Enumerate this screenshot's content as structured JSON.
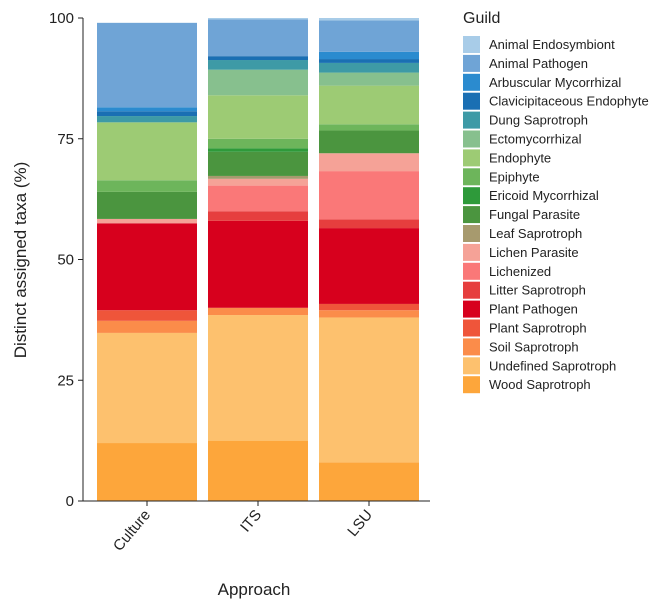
{
  "chart_data": {
    "type": "bar",
    "stacked": true,
    "title": "",
    "xlabel": "Approach",
    "ylabel": "Distinct assigned taxa (%)",
    "ylim": [
      0,
      100
    ],
    "yticks": [
      0,
      25,
      50,
      75,
      100
    ],
    "categories": [
      "Culture",
      "ITS",
      "LSU"
    ],
    "legend": {
      "title": "Guild",
      "position": "right"
    },
    "series": [
      {
        "name": "Wood Saprotroph",
        "color": "#FDA63B",
        "values": [
          12,
          12.5,
          8
        ]
      },
      {
        "name": "Undefined Saprotroph",
        "color": "#FDC16E",
        "values": [
          22.8,
          26,
          30
        ]
      },
      {
        "name": "Soil Saprotroph",
        "color": "#FB8C4A",
        "values": [
          2.5,
          1.5,
          1.5
        ]
      },
      {
        "name": "Plant Saprotroph",
        "color": "#EF553A",
        "values": [
          2.2,
          0,
          1.3
        ]
      },
      {
        "name": "Plant Pathogen",
        "color": "#D7001D",
        "values": [
          18,
          18,
          15.7
        ]
      },
      {
        "name": "Litter Saprotroph",
        "color": "#E63E3E",
        "values": [
          0,
          2,
          1.8
        ]
      },
      {
        "name": "Lichenized",
        "color": "#FA7878",
        "values": [
          0,
          5.3,
          10
        ]
      },
      {
        "name": "Lichen Parasite",
        "color": "#F5A297",
        "values": [
          0.9,
          1.4,
          3.7
        ]
      },
      {
        "name": "Leaf Saprotroph",
        "color": "#A79A6E",
        "values": [
          0,
          0.6,
          0
        ]
      },
      {
        "name": "Fungal Parasite",
        "color": "#4B953F",
        "values": [
          5.6,
          5,
          4.7
        ]
      },
      {
        "name": "Ericoid Mycorrhizal",
        "color": "#2E9A3A",
        "values": [
          0,
          0.7,
          0
        ]
      },
      {
        "name": "Epiphyte",
        "color": "#6DB55B",
        "values": [
          2.4,
          2,
          1.3
        ]
      },
      {
        "name": "Endophyte",
        "color": "#9DCB74",
        "values": [
          12,
          9,
          8
        ]
      },
      {
        "name": "Ectomycorrhizal",
        "color": "#87C08E",
        "values": [
          0,
          5.3,
          2.7
        ]
      },
      {
        "name": "Dung Saprotroph",
        "color": "#3E9AA6",
        "values": [
          1.3,
          2,
          2
        ]
      },
      {
        "name": "Clavicipitaceous Endophyte",
        "color": "#1A6FB3",
        "values": [
          1,
          0.8,
          0.8
        ]
      },
      {
        "name": "Arbuscular Mycorrhizal",
        "color": "#2B8BCF",
        "values": [
          0.8,
          0,
          1.5
        ]
      },
      {
        "name": "Animal Pathogen",
        "color": "#6FA4D6",
        "values": [
          17.5,
          7.6,
          6.5
        ]
      },
      {
        "name": "Animal Endosymbiont",
        "color": "#A8CCE8",
        "values": [
          0,
          0.3,
          0.5
        ]
      }
    ]
  }
}
